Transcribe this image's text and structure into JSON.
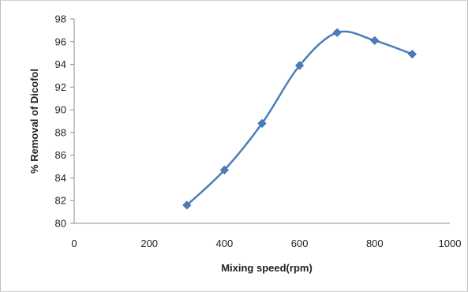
{
  "chart_data": {
    "type": "line",
    "title": "",
    "xlabel": "Mixing speed(rpm)",
    "ylabel": "% Removal of Dicofol",
    "xlim": [
      0,
      1000
    ],
    "ylim": [
      80,
      98
    ],
    "xticks": [
      0,
      200,
      400,
      600,
      800,
      1000
    ],
    "yticks": [
      80,
      82,
      84,
      86,
      88,
      90,
      92,
      94,
      96,
      98
    ],
    "grid": false,
    "smooth": true,
    "marker": "diamond",
    "color": "#4a7ebb",
    "series": [
      {
        "x": [
          300,
          400,
          500,
          600,
          700,
          800,
          900
        ],
        "y": [
          81.6,
          84.7,
          88.8,
          93.9,
          96.8,
          96.1,
          94.9
        ]
      }
    ]
  }
}
